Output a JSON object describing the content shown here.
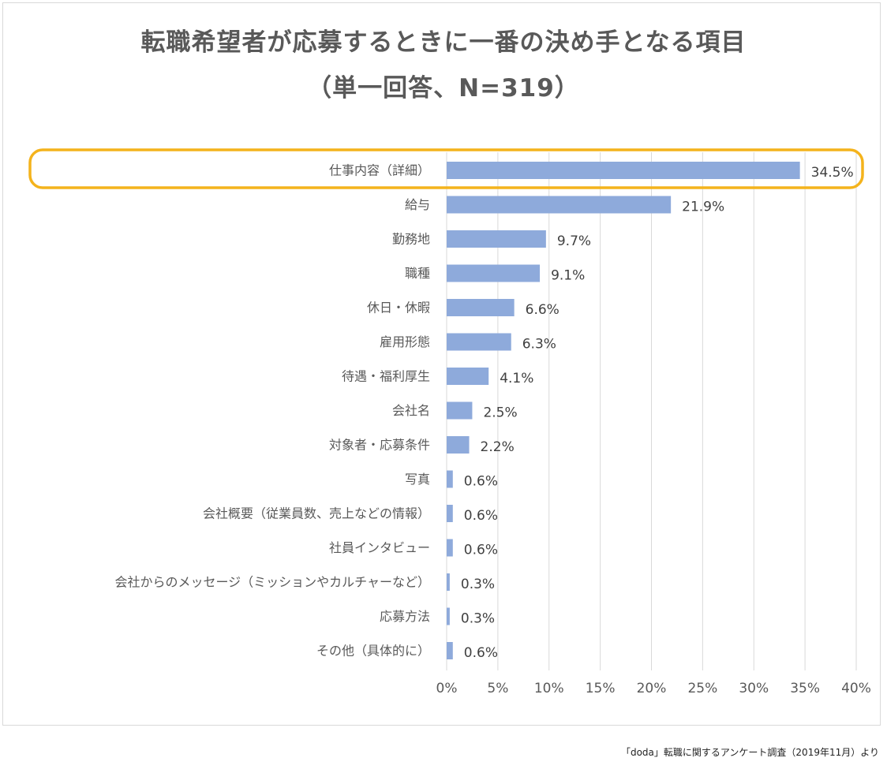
{
  "chart_data": {
    "type": "bar",
    "orientation": "horizontal",
    "title": "転職希望者が応募するときに一番の決め手となる項目",
    "subtitle": "（単一回答、N=319）",
    "categories": [
      "仕事内容（詳細）",
      "給与",
      "勤務地",
      "職種",
      "休日・休暇",
      "雇用形態",
      "待遇・福利厚生",
      "会社名",
      "対象者・応募条件",
      "写真",
      "会社概要（従業員数、売上などの情報）",
      "社員インタビュー",
      "会社からのメッセージ（ミッションやカルチャーなど）",
      "応募方法",
      "その他（具体的に）"
    ],
    "values": [
      34.5,
      21.9,
      9.7,
      9.1,
      6.6,
      6.3,
      4.1,
      2.5,
      2.2,
      0.6,
      0.6,
      0.6,
      0.3,
      0.3,
      0.6
    ],
    "value_labels": [
      "34.5%",
      "21.9%",
      "9.7%",
      "9.1%",
      "6.6%",
      "6.3%",
      "4.1%",
      "2.5%",
      "2.2%",
      "0.6%",
      "0.6%",
      "0.6%",
      "0.3%",
      "0.3%",
      "0.6%"
    ],
    "xlim": [
      0,
      40
    ],
    "xticks": [
      0,
      5,
      10,
      15,
      20,
      25,
      30,
      35,
      40
    ],
    "xtick_labels": [
      "0%",
      "5%",
      "10%",
      "15%",
      "20%",
      "25%",
      "30%",
      "35%",
      "40%"
    ],
    "xlabel": "",
    "ylabel": "",
    "grid": "vertical",
    "highlight_index": 0,
    "bar_color": "#8eaadb",
    "highlight_color": "#f4b31c"
  },
  "source": "「doda」転職に関するアンケート調査（2019年11月）より"
}
